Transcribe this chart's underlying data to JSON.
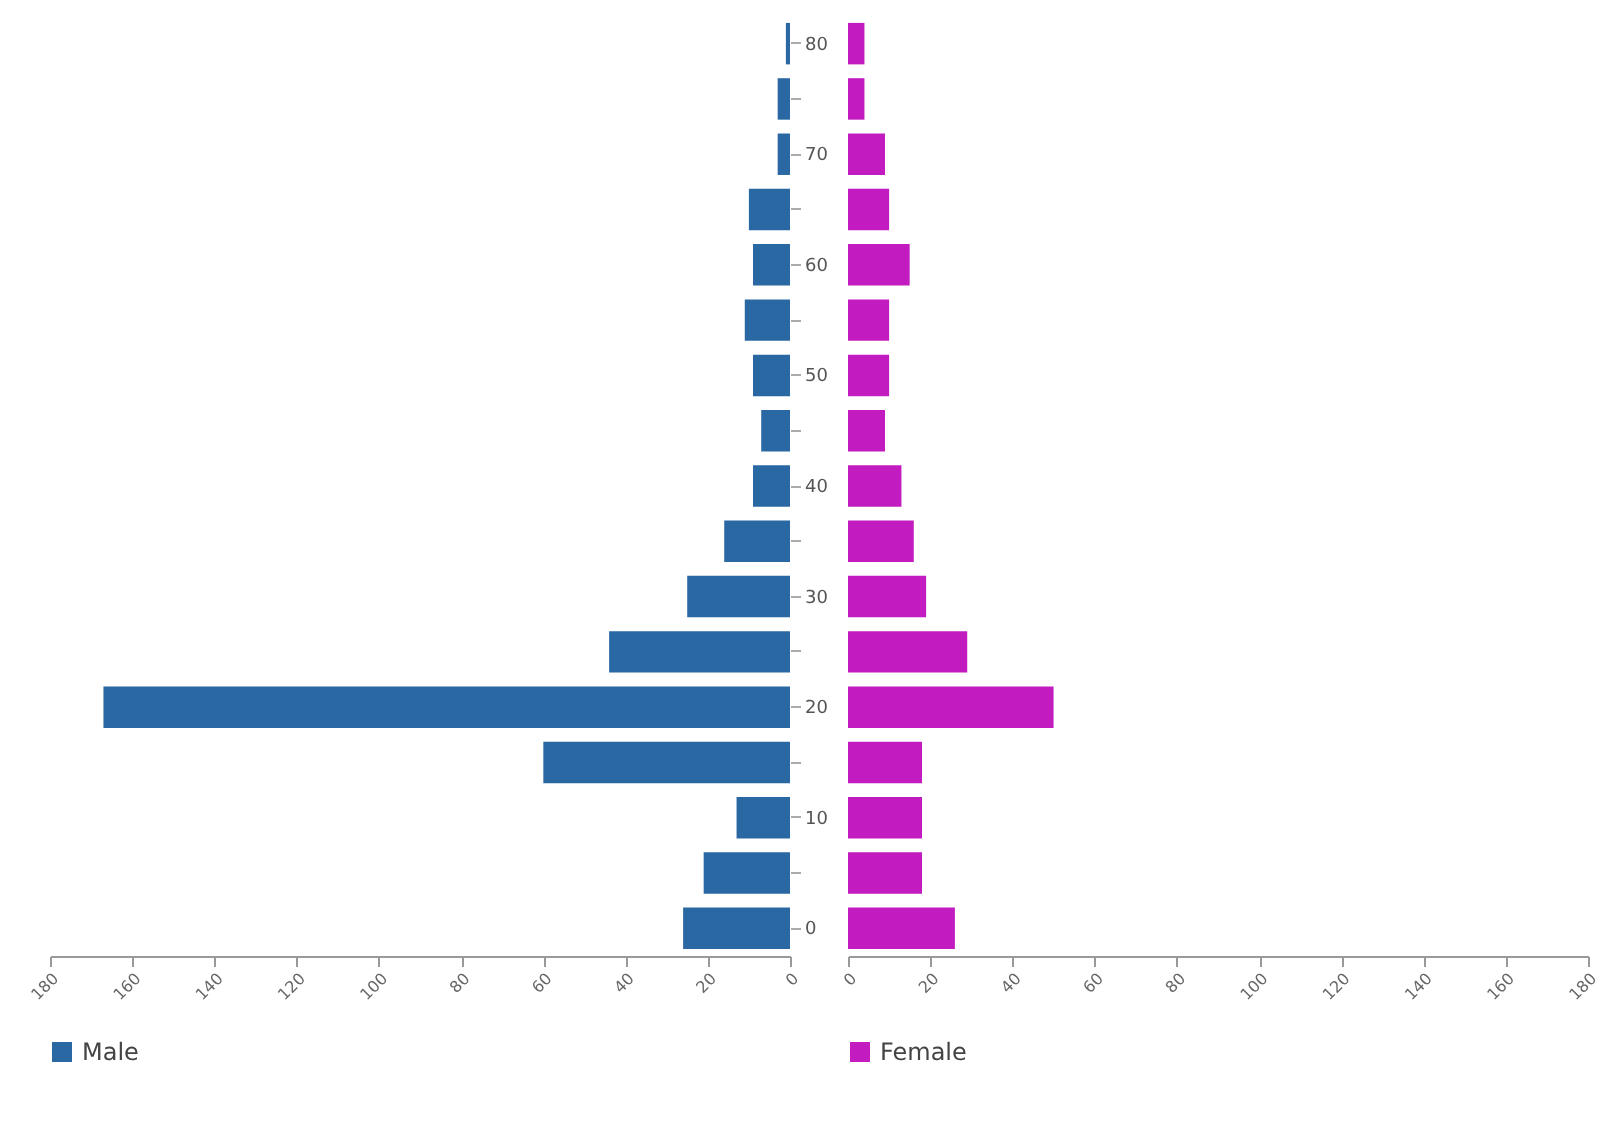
{
  "chart_data": [
    {
      "type": "bar",
      "orientation": "horizontal",
      "categories": [
        "80",
        null,
        "70",
        null,
        "60",
        null,
        "50",
        null,
        "40",
        null,
        "30",
        null,
        "20",
        null,
        "10",
        null,
        "0"
      ],
      "series": [
        {
          "name": "Male",
          "color": "#2a68a4",
          "values": [
            1,
            3,
            3,
            10,
            9,
            11,
            9,
            7,
            9,
            16,
            25,
            44,
            167,
            60,
            13,
            21,
            26
          ]
        }
      ],
      "xlim": [
        180,
        0
      ],
      "xticks": [
        180,
        160,
        140,
        120,
        100,
        80,
        60,
        40,
        20,
        0
      ],
      "grid": false,
      "legend": "bottom"
    },
    {
      "type": "bar",
      "orientation": "horizontal",
      "categories": [
        "80",
        null,
        "70",
        null,
        "60",
        null,
        "50",
        null,
        "40",
        null,
        "30",
        null,
        "20",
        null,
        "10",
        null,
        "0"
      ],
      "series": [
        {
          "name": "Female",
          "color": "#c21bbf",
          "values": [
            4,
            4,
            9,
            10,
            15,
            10,
            10,
            9,
            13,
            16,
            19,
            29,
            50,
            18,
            18,
            18,
            26
          ]
        }
      ],
      "xlim": [
        0,
        180
      ],
      "xticks": [
        0,
        20,
        40,
        60,
        80,
        100,
        120,
        140,
        160,
        180
      ],
      "grid": false,
      "legend": "bottom",
      "tick_labels": "x"
    }
  ]
}
